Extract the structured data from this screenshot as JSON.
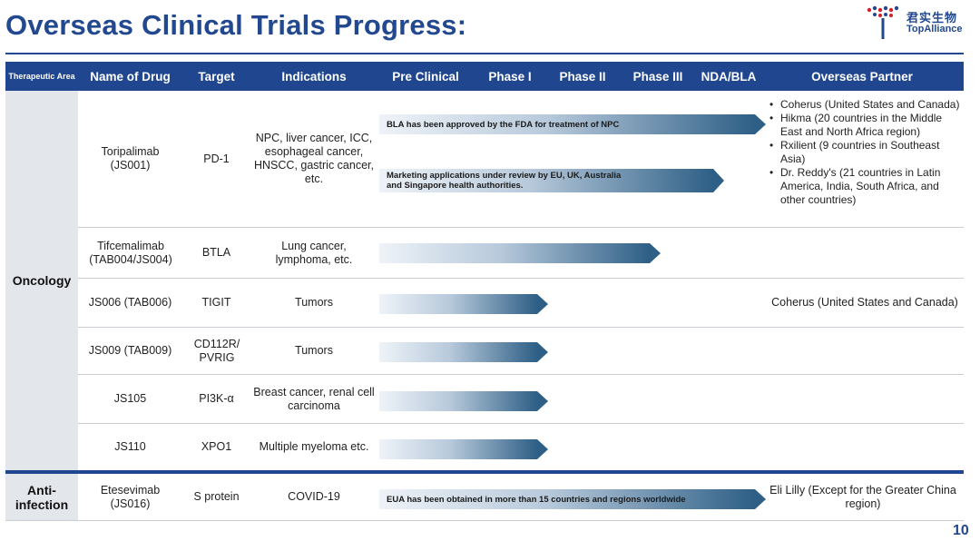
{
  "title": "Overseas Clinical Trials Progress:",
  "logo": {
    "cn": "君实生物",
    "en": "TopAlliance"
  },
  "header": {
    "therapeutic_area": "Therapeutic Area",
    "name_of_drug": "Name of Drug",
    "target": "Target",
    "indications": "Indications",
    "pre_clinical": "Pre Clinical",
    "phase1": "Phase I",
    "phase2": "Phase II",
    "phase3": "Phase III",
    "nda_bla": "NDA/BLA",
    "partner": "Overseas Partner"
  },
  "areas": {
    "oncology": "Oncology",
    "anti_infection": "Anti-infection"
  },
  "rows": [
    {
      "drug": "Toripalimab (JS001)",
      "target": "PD-1",
      "indications": "NPC, liver cancer, ICC, esophageal cancer, HNSCC, gastric cancer, etc.",
      "arrow1_text": "BLA has been approved by the FDA for treatment of NPC",
      "arrow2_text": "Marketing applications under review by EU, UK, Australia and Singapore health authorities.",
      "partners": [
        "Coherus (United States and Canada)",
        "Hikma (20 countries in the Middle East and North Africa region)",
        "Rxilient (9 countries in Southeast Asia)",
        "Dr. Reddy's (21 countries in Latin America, India, South Africa, and other countries)"
      ]
    },
    {
      "drug": "Tifcemalimab (TAB004/JS004)",
      "target": "BTLA",
      "indications": "Lung cancer, lymphoma, etc."
    },
    {
      "drug": "JS006 (TAB006)",
      "target": "TIGIT",
      "indications": "Tumors",
      "partner": "Coherus (United States and Canada)"
    },
    {
      "drug": "JS009 (TAB009)",
      "target": "CD112R/ PVRIG",
      "indications": "Tumors"
    },
    {
      "drug": "JS105",
      "target": "PI3K-α",
      "indications": "Breast cancer, renal cell carcinoma"
    },
    {
      "drug": "JS110",
      "target": "XPO1",
      "indications": "Multiple myeloma etc."
    },
    {
      "drug": "Etesevimab (JS016)",
      "target": "S protein",
      "indications": "COVID-19",
      "arrow_text": "EUA has been obtained in more than 15 countries and regions worldwide",
      "partner": "Eli Lilly (Except for the Greater China region)"
    }
  ],
  "page_number": "10"
}
